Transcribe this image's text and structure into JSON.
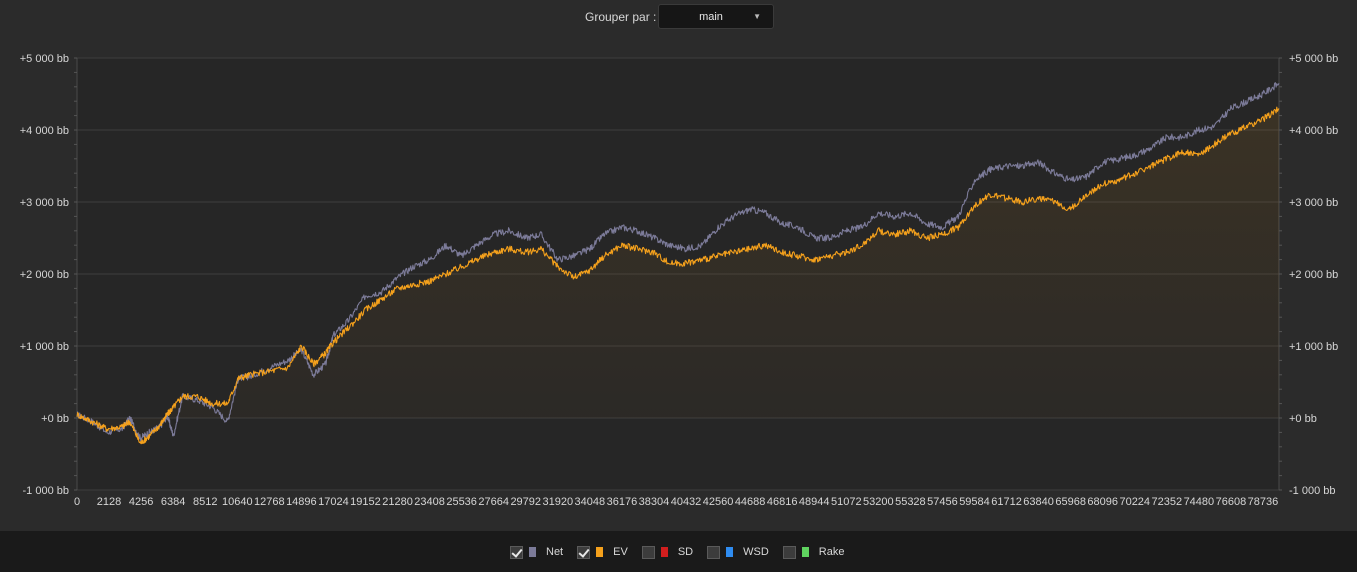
{
  "toolbar": {
    "group_label": "Grouper par :",
    "group_value": "main",
    "dropdown_icon": "chevron-down-icon"
  },
  "legend": {
    "items": [
      {
        "label": "Net",
        "checked": true,
        "color": "#7c7b99"
      },
      {
        "label": "EV",
        "checked": true,
        "color": "#f5a11c"
      },
      {
        "label": "SD",
        "checked": false,
        "color": "#d21e1e"
      },
      {
        "label": "WSD",
        "checked": false,
        "color": "#2f8cf0"
      },
      {
        "label": "Rake",
        "checked": false,
        "color": "#5fd35f"
      }
    ]
  },
  "chart_data": {
    "type": "line",
    "xlim": [
      0,
      79800
    ],
    "ylim": [
      -1000,
      5000
    ],
    "y_ticks": [
      "+5 000 bb",
      "+4 000 bb",
      "+3 000 bb",
      "+2 000 bb",
      "+1 000 bb",
      "+0 bb",
      "-1 000 bb"
    ],
    "y_tick_values": [
      5000,
      4000,
      3000,
      2000,
      1000,
      0,
      -1000
    ],
    "x_ticks": [
      0,
      2128,
      4256,
      6384,
      8512,
      10640,
      12768,
      14896,
      17024,
      19152,
      21280,
      23408,
      25536,
      27664,
      29792,
      31920,
      34048,
      36176,
      38304,
      40432,
      42560,
      44688,
      46816,
      48944,
      51072,
      53200,
      55328,
      57456,
      59584,
      61712,
      63840,
      65968,
      68096,
      70224,
      72352,
      74480,
      76608,
      78736
    ],
    "grid": true,
    "series": [
      {
        "name": "Net",
        "color": "#7c7b99",
        "x": [
          0,
          1000,
          2000,
          3000,
          3500,
          4200,
          4800,
          5500,
          6000,
          6400,
          7000,
          8000,
          9000,
          10000,
          10700,
          11500,
          12800,
          14000,
          14900,
          15700,
          16500,
          17024,
          18000,
          19152,
          20200,
          21280,
          22300,
          23408,
          24500,
          25536,
          26500,
          27664,
          28700,
          29792,
          30800,
          31920,
          33000,
          34048,
          35000,
          36176,
          37200,
          38304,
          39300,
          40432,
          41500,
          42560,
          43600,
          44688,
          45700,
          46816,
          47900,
          48944,
          50000,
          51072,
          52100,
          53200,
          54300,
          55328,
          56400,
          57456,
          58500,
          59584,
          60600,
          61712,
          62800,
          63840,
          64900,
          65968,
          67000,
          68096,
          69200,
          70224,
          71300,
          72352,
          73400,
          74480,
          75500,
          76608,
          77700,
          78736,
          79800
        ],
        "values": [
          50,
          -50,
          -200,
          -150,
          0,
          -280,
          -200,
          -120,
          30,
          -250,
          300,
          250,
          150,
          -50,
          550,
          580,
          700,
          800,
          950,
          600,
          750,
          1150,
          1350,
          1700,
          1750,
          1950,
          2100,
          2200,
          2400,
          2250,
          2400,
          2550,
          2600,
          2500,
          2550,
          2200,
          2250,
          2350,
          2550,
          2650,
          2600,
          2500,
          2400,
          2350,
          2400,
          2650,
          2800,
          2900,
          2850,
          2700,
          2650,
          2500,
          2500,
          2600,
          2650,
          2850,
          2800,
          2850,
          2700,
          2650,
          2800,
          3300,
          3450,
          3500,
          3500,
          3550,
          3400,
          3300,
          3350,
          3550,
          3600,
          3650,
          3750,
          3900,
          3900,
          4000,
          4050,
          4300,
          4400,
          4500,
          4650
        ]
      },
      {
        "name": "EV",
        "color": "#f5a11c",
        "x": [
          0,
          1000,
          2000,
          3000,
          3500,
          4200,
          4800,
          5500,
          6000,
          6400,
          7000,
          8000,
          9000,
          10000,
          10700,
          11500,
          12800,
          14000,
          14900,
          15700,
          16500,
          17024,
          18000,
          19152,
          20200,
          21280,
          22300,
          23408,
          24500,
          25536,
          26500,
          27664,
          28700,
          29792,
          30800,
          31920,
          33000,
          34048,
          35000,
          36176,
          37200,
          38304,
          39300,
          40432,
          41500,
          42560,
          43600,
          44688,
          45700,
          46816,
          47900,
          48944,
          50000,
          51072,
          52100,
          53200,
          54300,
          55328,
          56400,
          57456,
          58500,
          59584,
          60600,
          61712,
          62800,
          63840,
          64900,
          65968,
          67000,
          68096,
          69200,
          70224,
          71300,
          72352,
          73400,
          74480,
          75500,
          76608,
          77700,
          78736,
          79800
        ],
        "values": [
          50,
          -50,
          -150,
          -120,
          -50,
          -350,
          -250,
          -100,
          50,
          150,
          300,
          300,
          200,
          200,
          550,
          600,
          650,
          700,
          1000,
          750,
          900,
          1050,
          1250,
          1500,
          1650,
          1800,
          1850,
          1900,
          2000,
          2100,
          2200,
          2300,
          2350,
          2300,
          2350,
          2100,
          1950,
          2050,
          2250,
          2400,
          2350,
          2300,
          2150,
          2150,
          2200,
          2250,
          2300,
          2350,
          2400,
          2300,
          2250,
          2200,
          2250,
          2300,
          2400,
          2600,
          2550,
          2600,
          2500,
          2550,
          2650,
          2950,
          3100,
          3050,
          3000,
          3050,
          3000,
          2900,
          3100,
          3250,
          3300,
          3400,
          3500,
          3600,
          3700,
          3650,
          3800,
          3950,
          4050,
          4150,
          4300
        ]
      }
    ]
  }
}
